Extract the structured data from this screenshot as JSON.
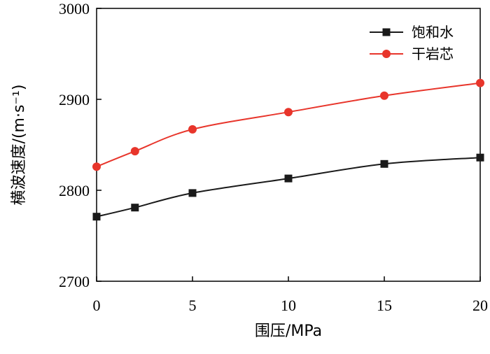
{
  "chart_data": {
    "type": "line",
    "xlabel": "围压/MPa",
    "ylabel": "横波速度/(m·s⁻¹)",
    "x": [
      0,
      2,
      5,
      10,
      15,
      20
    ],
    "xticks": [
      0,
      5,
      10,
      15,
      20
    ],
    "yticks": [
      2700,
      2800,
      2900,
      3000
    ],
    "xlim": [
      0,
      20
    ],
    "ylim": [
      2700,
      3000
    ],
    "grid": false,
    "legend_position": "top-right",
    "series": [
      {
        "name": "饱和水",
        "color": "#1a1a1a",
        "marker": "square",
        "values": [
          2771,
          2781,
          2797,
          2813,
          2829,
          2836
        ]
      },
      {
        "name": "干岩芯",
        "color": "#e8352b",
        "marker": "circle",
        "values": [
          2826,
          2843,
          2867,
          2886,
          2904,
          2918
        ]
      }
    ]
  }
}
